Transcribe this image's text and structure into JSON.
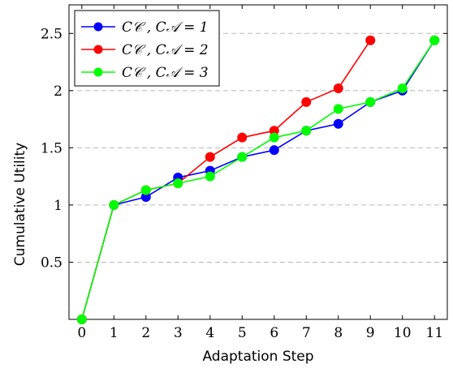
{
  "chart_data": {
    "type": "line",
    "xlabel": "Adaptation Step",
    "ylabel": "Cumulative Utility",
    "x_ticks": [
      0,
      1,
      2,
      3,
      4,
      5,
      6,
      7,
      8,
      9,
      10,
      11
    ],
    "y_ticks": [
      0.5,
      1,
      1.5,
      2,
      2.5
    ],
    "y_tick_labels": [
      "0.5",
      "1",
      "1.5",
      "2",
      "2.5"
    ],
    "xlim": [
      -0.4,
      11.4
    ],
    "ylim": [
      0,
      2.75
    ],
    "grid": "horizontal dashed",
    "legend_position": "top-left",
    "series": [
      {
        "name": "C_C , C_A = 1",
        "legend_label": "𝐶𝒞 , 𝐶𝒜 = 1",
        "color": "#0000ff",
        "x": [
          0,
          1,
          2,
          3,
          4,
          5,
          6,
          7,
          8,
          9,
          10,
          11
        ],
        "y": [
          0.0,
          1.0,
          1.07,
          1.24,
          1.3,
          1.42,
          1.48,
          1.65,
          1.71,
          1.9,
          2.0,
          2.44
        ]
      },
      {
        "name": "C_C , C_A = 2",
        "legend_label": "𝐶𝒞 , 𝐶𝒜 = 2",
        "color": "#ff0000",
        "x": [
          0,
          1,
          2,
          3,
          4,
          5,
          6,
          7,
          8,
          9
        ],
        "y": [
          0.0,
          1.0,
          1.13,
          1.19,
          1.42,
          1.59,
          1.65,
          1.9,
          2.02,
          2.44
        ]
      },
      {
        "name": "C_C , C_A = 3",
        "legend_label": "𝐶𝒞 , 𝐶𝒜 = 3",
        "color": "#00ff00",
        "x": [
          0,
          1,
          2,
          3,
          4,
          5,
          6,
          7,
          8,
          9,
          10,
          11
        ],
        "y": [
          0.0,
          1.0,
          1.13,
          1.19,
          1.25,
          1.42,
          1.59,
          1.65,
          1.84,
          1.9,
          2.02,
          2.44
        ]
      }
    ]
  }
}
